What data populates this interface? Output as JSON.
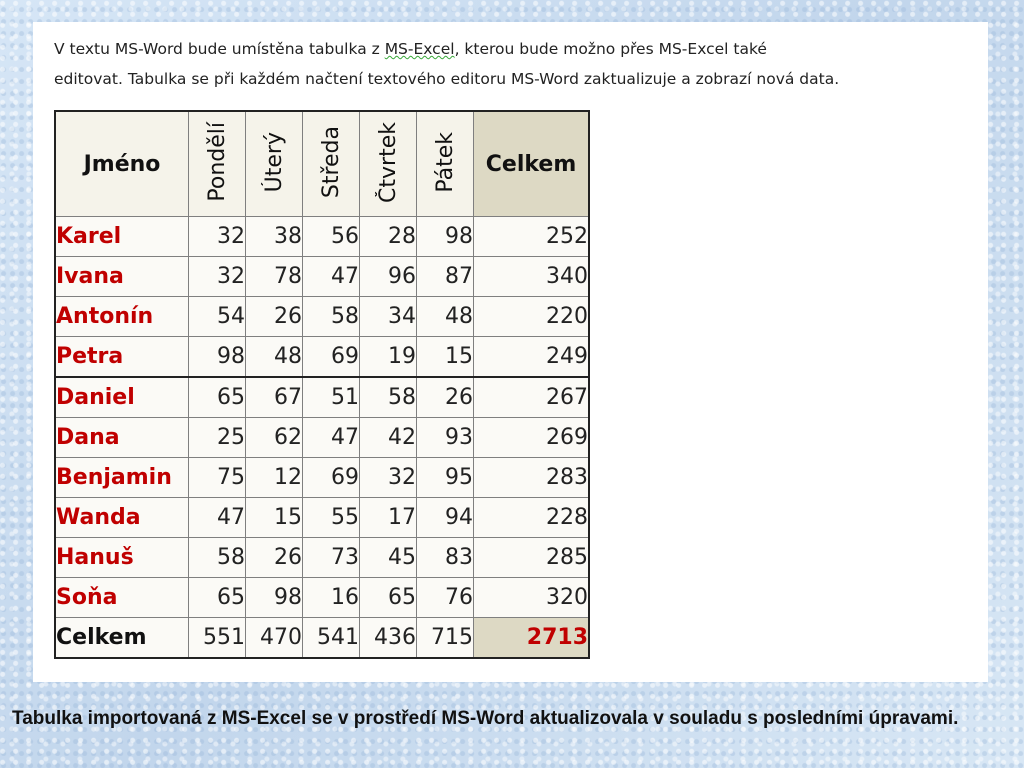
{
  "intro": {
    "part1": "V textu MS-Word bude umístěna tabulka z ",
    "highlight": "MS-Excel",
    "part2": ", kterou bude možno přes MS-Excel také",
    "line2": "editovat. Tabulka se při každém načtení textového editoru MS-Word zaktualizuje a zobrazí nová data."
  },
  "table": {
    "name_header": "Jméno",
    "day_headers": [
      "Pondělí",
      "Úterý",
      "Středa",
      "Čtvrtek",
      "Pátek"
    ],
    "total_header": "Celkem",
    "rows": [
      {
        "name": "Karel",
        "values": [
          "32",
          "38",
          "56",
          "28",
          "98"
        ],
        "total": "252"
      },
      {
        "name": "Ivana",
        "values": [
          "32",
          "78",
          "47",
          "96",
          "87"
        ],
        "total": "340"
      },
      {
        "name": "Antonín",
        "values": [
          "54",
          "26",
          "58",
          "34",
          "48"
        ],
        "total": "220"
      },
      {
        "name": "Petra",
        "values": [
          "98",
          "48",
          "69",
          "19",
          "15"
        ],
        "total": "249"
      },
      {
        "name": "Daniel",
        "values": [
          "65",
          "67",
          "51",
          "58",
          "26"
        ],
        "total": "267"
      },
      {
        "name": "Dana",
        "values": [
          "25",
          "62",
          "47",
          "42",
          "93"
        ],
        "total": "269"
      },
      {
        "name": "Benjamin",
        "values": [
          "75",
          "12",
          "69",
          "32",
          "95"
        ],
        "total": "283"
      },
      {
        "name": "Wanda",
        "values": [
          "47",
          "15",
          "55",
          "17",
          "94"
        ],
        "total": "228"
      },
      {
        "name": "Hanuš",
        "values": [
          "58",
          "26",
          "73",
          "45",
          "83"
        ],
        "total": "285"
      },
      {
        "name": "Soňa",
        "values": [
          "65",
          "98",
          "16",
          "65",
          "76"
        ],
        "total": "320"
      }
    ],
    "sum_row": {
      "name": "Celkem",
      "values": [
        "551",
        "470",
        "541",
        "436",
        "715"
      ],
      "total": "2713"
    }
  },
  "caption": "Tabulka importovaná z MS-Excel se v prostředí MS-Word aktualizovala v souladu s posledními úpravami.",
  "colors": {
    "name_text": "#c00000",
    "total_fill": "#ddd9c4",
    "background": "#cfe0f2"
  }
}
